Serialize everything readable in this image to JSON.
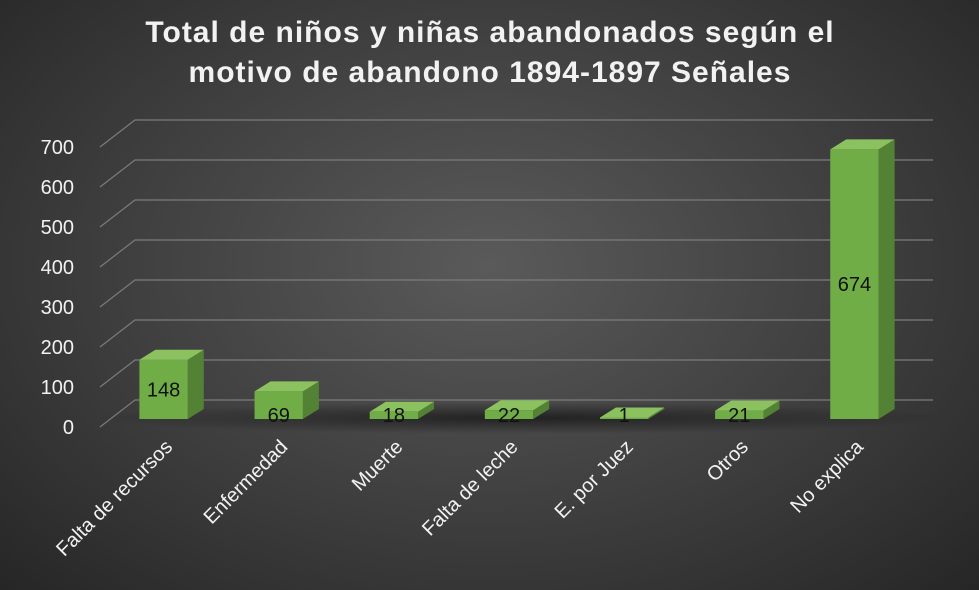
{
  "chart_data": {
    "type": "bar",
    "title_lines": [
      "Total de niños y niñas abandonados según el",
      "motivo de abandono 1894-1897 Señales"
    ],
    "categories": [
      "Falta de recursos",
      "Enfermedad",
      "Muerte",
      "Falta de leche",
      "E. por Juez",
      "Otros",
      "No explica"
    ],
    "values": [
      148,
      69,
      18,
      22,
      1,
      21,
      674
    ],
    "yticks": [
      "0",
      "100",
      "200",
      "300",
      "400",
      "500",
      "600",
      "700"
    ],
    "ylim": [
      0,
      700
    ],
    "grid": true,
    "style": "3d",
    "colors": {
      "bar_front": "#70ad47",
      "bar_side": "#548235",
      "bar_top": "#8cc15f",
      "text": "#f2f2f2",
      "label": "#111111"
    }
  }
}
